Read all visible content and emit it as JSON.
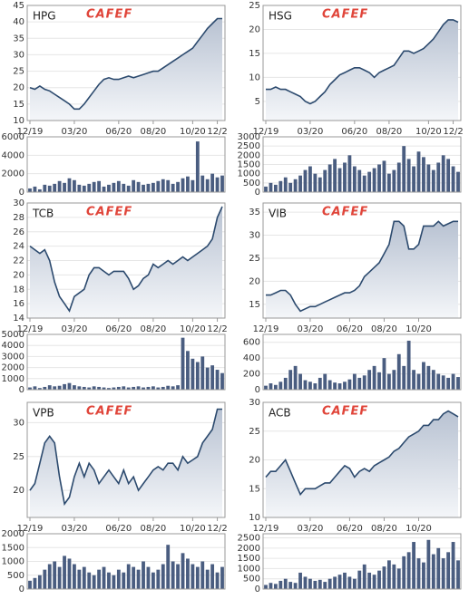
{
  "chart_data": [
    {
      "type": "area",
      "title": "HPG",
      "watermark": "CAFEF",
      "color": "#2c4a6e",
      "xlim": [
        0,
        39
      ],
      "xticks": [
        {
          "value": 0,
          "label": "12/19"
        },
        {
          "value": 9,
          "label": "03/20"
        },
        {
          "value": 18,
          "label": "06/20"
        },
        {
          "value": 25,
          "label": "08/20"
        },
        {
          "value": 33,
          "label": "10/20"
        },
        {
          "value": 38,
          "label": "12/2"
        }
      ],
      "ylim": [
        10,
        45
      ],
      "yticks": [
        10,
        15,
        20,
        25,
        30,
        35,
        40,
        45
      ],
      "values": [
        20,
        19.5,
        20.5,
        19.5,
        19,
        18,
        17,
        16,
        15,
        13.5,
        13.5,
        15,
        17,
        19,
        21,
        22.5,
        23,
        22.5,
        22.5,
        23,
        23.5,
        23,
        23.5,
        24,
        24.5,
        25,
        25,
        26,
        27,
        28,
        29,
        30,
        31,
        32,
        34,
        36,
        38,
        39.5,
        41,
        41
      ],
      "volume": {
        "type": "bar",
        "color": "#4a5d80",
        "ylim": [
          0,
          6000
        ],
        "yticks": [
          0,
          2000,
          4000,
          6000
        ],
        "values": [
          400,
          600,
          300,
          800,
          700,
          900,
          1200,
          1000,
          1500,
          1300,
          800,
          700,
          900,
          1100,
          1200,
          600,
          800,
          1000,
          1200,
          900,
          700,
          1300,
          1100,
          800,
          900,
          1000,
          1200,
          1400,
          1300,
          900,
          1100,
          1500,
          1700,
          1300,
          5500,
          1800,
          1400,
          2000,
          1600,
          1800
        ]
      }
    },
    {
      "type": "area",
      "title": "HSG",
      "watermark": "CAFEF",
      "color": "#2c4a6e",
      "xlim": [
        0,
        39
      ],
      "xticks": [
        {
          "value": 0,
          "label": "12/19"
        },
        {
          "value": 9,
          "label": "03/20"
        },
        {
          "value": 18,
          "label": "06/20"
        },
        {
          "value": 25,
          "label": "08/20"
        },
        {
          "value": 33,
          "label": "10/20"
        },
        {
          "value": 38,
          "label": "12/2"
        }
      ],
      "ylim": [
        1,
        25
      ],
      "yticks": [
        5,
        10,
        15,
        20,
        25
      ],
      "values": [
        7.5,
        7.5,
        8,
        7.5,
        7.5,
        7,
        6.5,
        6,
        5,
        4.5,
        5,
        6,
        7,
        8.5,
        9.5,
        10.5,
        11,
        11.5,
        12,
        12,
        11.5,
        11,
        10,
        11,
        11.5,
        12,
        12.5,
        14,
        15.5,
        15.5,
        15,
        15.5,
        16,
        17,
        18,
        19.5,
        21,
        22,
        22,
        21.5
      ],
      "volume": {
        "type": "bar",
        "color": "#4a5d80",
        "ylim": [
          0,
          3000
        ],
        "yticks": [
          0,
          500,
          1000,
          1500,
          2000,
          2500,
          3000
        ],
        "values": [
          300,
          500,
          400,
          600,
          800,
          500,
          700,
          900,
          1200,
          1400,
          1000,
          800,
          1200,
          1500,
          1800,
          1300,
          1600,
          2000,
          1400,
          1200,
          900,
          1100,
          1300,
          1500,
          1700,
          1000,
          1200,
          1600,
          2500,
          1800,
          1400,
          2200,
          1900,
          1500,
          1200,
          1600,
          2000,
          1800,
          1400,
          1100
        ]
      }
    },
    {
      "type": "area",
      "title": "TCB",
      "watermark": "CAFEF",
      "color": "#2c4a6e",
      "xlim": [
        0,
        39
      ],
      "xticks": [
        {
          "value": 0,
          "label": "12/19"
        },
        {
          "value": 9,
          "label": "03/20"
        },
        {
          "value": 18,
          "label": "06/20"
        },
        {
          "value": 25,
          "label": "08/20"
        },
        {
          "value": 33,
          "label": "10/20"
        },
        {
          "value": 38,
          "label": "12/2"
        }
      ],
      "ylim": [
        14,
        30
      ],
      "yticks": [
        14,
        16,
        18,
        20,
        22,
        24,
        26,
        28,
        30
      ],
      "values": [
        24,
        23.5,
        23,
        23.5,
        22,
        19,
        17,
        16,
        15,
        17,
        17.5,
        18,
        20,
        21,
        21,
        20.5,
        20,
        20.5,
        20.5,
        20.5,
        19.5,
        18,
        18.5,
        19.5,
        20,
        21.5,
        21,
        21.5,
        22,
        21.5,
        22,
        22.5,
        22,
        22.5,
        23,
        23.5,
        24,
        25,
        28,
        29.5
      ],
      "volume": {
        "type": "bar",
        "color": "#4a5d80",
        "ylim": [
          0,
          5000
        ],
        "yticks": [
          0,
          1000,
          2000,
          3000,
          4000,
          5000
        ],
        "values": [
          200,
          300,
          150,
          250,
          400,
          300,
          350,
          500,
          600,
          400,
          300,
          250,
          200,
          300,
          250,
          200,
          150,
          200,
          250,
          300,
          200,
          250,
          300,
          200,
          250,
          300,
          200,
          250,
          350,
          300,
          400,
          4700,
          3500,
          2800,
          2500,
          3000,
          2000,
          2200,
          1800,
          1500
        ]
      }
    },
    {
      "type": "area",
      "title": "VIB",
      "watermark": "CAFEF",
      "color": "#2c4a6e",
      "xlim": [
        0,
        39
      ],
      "xticks": [
        {
          "value": 0,
          "label": "12/19"
        },
        {
          "value": 9,
          "label": "03/20"
        },
        {
          "value": 17,
          "label": "06/20"
        },
        {
          "value": 24,
          "label": "08/20"
        },
        {
          "value": 31,
          "label": "10/20"
        }
      ],
      "ylim": [
        12,
        37
      ],
      "yticks": [
        15,
        20,
        25,
        30,
        35
      ],
      "values": [
        17,
        17,
        17.5,
        18,
        18,
        17,
        15,
        13.5,
        14,
        14.5,
        14.5,
        15,
        15.5,
        16,
        16.5,
        17,
        17.5,
        17.5,
        18,
        19,
        21,
        22,
        23,
        24,
        26,
        28,
        33,
        33,
        32,
        27,
        27,
        28,
        32,
        32,
        32,
        33,
        32,
        32.5,
        33,
        33
      ],
      "volume": {
        "type": "bar",
        "color": "#4a5d80",
        "ylim": [
          0,
          700
        ],
        "yticks": [
          0,
          200,
          400,
          600
        ],
        "values": [
          50,
          80,
          60,
          100,
          150,
          250,
          300,
          200,
          120,
          100,
          80,
          150,
          200,
          120,
          90,
          80,
          100,
          130,
          200,
          150,
          180,
          250,
          300,
          220,
          400,
          200,
          250,
          450,
          300,
          620,
          250,
          200,
          350,
          300,
          250,
          200,
          180,
          150,
          200,
          160
        ]
      }
    },
    {
      "type": "area",
      "title": "VPB",
      "watermark": "CAFEF",
      "color": "#2c4a6e",
      "xlim": [
        0,
        39
      ],
      "xticks": [
        {
          "value": 0,
          "label": "12/19"
        },
        {
          "value": 9,
          "label": "03/20"
        },
        {
          "value": 18,
          "label": "06/20"
        },
        {
          "value": 25,
          "label": "08/20"
        },
        {
          "value": 33,
          "label": "10/20"
        },
        {
          "value": 38,
          "label": "12/2"
        }
      ],
      "ylim": [
        16,
        33
      ],
      "yticks": [
        20,
        25,
        30
      ],
      "values": [
        20,
        21,
        24,
        27,
        28,
        27,
        22,
        18,
        19,
        22,
        24,
        22,
        24,
        23,
        21,
        22,
        23,
        22,
        21,
        23,
        21,
        22,
        20,
        21,
        22,
        23,
        23.5,
        23,
        24,
        24,
        23,
        25,
        24,
        24.5,
        25,
        27,
        28,
        29,
        32,
        32
      ],
      "volume": {
        "type": "bar",
        "color": "#4a5d80",
        "ylim": [
          0,
          2000
        ],
        "yticks": [
          0,
          500,
          1000,
          1500,
          2000
        ],
        "values": [
          300,
          400,
          500,
          700,
          900,
          1000,
          800,
          1200,
          1100,
          900,
          700,
          800,
          600,
          500,
          700,
          800,
          600,
          500,
          700,
          600,
          900,
          800,
          700,
          1000,
          800,
          600,
          700,
          900,
          1600,
          1000,
          900,
          1300,
          1100,
          900,
          800,
          1000,
          700,
          900,
          600,
          800
        ]
      }
    },
    {
      "type": "area",
      "title": "ACB",
      "watermark": "CAFEF",
      "color": "#2c4a6e",
      "xlim": [
        0,
        39
      ],
      "xticks": [
        {
          "value": 0,
          "label": "12/19"
        },
        {
          "value": 9,
          "label": "03/20"
        },
        {
          "value": 17,
          "label": "06/20"
        },
        {
          "value": 24,
          "label": "08/20"
        },
        {
          "value": 31,
          "label": "10/20"
        }
      ],
      "ylim": [
        10,
        30
      ],
      "yticks": [
        10,
        15,
        20,
        25,
        30
      ],
      "values": [
        17,
        18,
        18,
        19,
        20,
        18,
        16,
        14,
        15,
        15,
        15,
        15.5,
        16,
        16,
        17,
        18,
        19,
        18.5,
        17,
        18,
        18.5,
        18,
        19,
        19.5,
        20,
        20.5,
        21.5,
        22,
        23,
        24,
        24.5,
        25,
        26,
        26,
        27,
        27,
        28,
        28.5,
        28,
        27.5
      ],
      "volume": {
        "type": "bar",
        "color": "#4a5d80",
        "ylim": [
          0,
          2700
        ],
        "yticks": [
          0,
          500,
          1000,
          1500,
          2000,
          2500
        ],
        "values": [
          200,
          300,
          250,
          400,
          500,
          350,
          300,
          800,
          600,
          500,
          400,
          450,
          350,
          500,
          600,
          700,
          800,
          600,
          500,
          900,
          1200,
          800,
          700,
          900,
          1100,
          1400,
          1200,
          1000,
          1600,
          1800,
          2300,
          1500,
          1300,
          2400,
          1700,
          2000,
          1500,
          1800,
          2300,
          1400
        ]
      }
    }
  ]
}
